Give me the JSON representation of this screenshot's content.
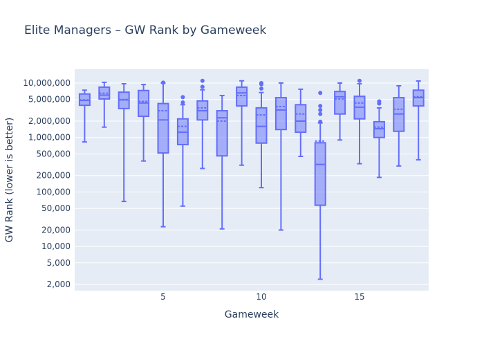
{
  "chart_data": {
    "type": "box",
    "title": "Elite Managers – GW Rank by Gameweek",
    "xlabel": "Gameweek",
    "ylabel": "GW Rank (lower is better)",
    "yscale": "log",
    "ylim": [
      1600,
      14000
    ],
    "x_ticks": [
      5,
      10,
      15
    ],
    "y_ticks": [
      {
        "value": 10000000,
        "label": "10,000,000"
      },
      {
        "value": 5000000,
        "label": "5,000,000"
      },
      {
        "value": 2000000,
        "label": "2,000,000"
      },
      {
        "value": 1000000,
        "label": "1,000,000"
      },
      {
        "value": 500000,
        "label": "500,000"
      },
      {
        "value": 200000,
        "label": "200,000"
      },
      {
        "value": 100000,
        "label": "100,000"
      },
      {
        "value": 50000,
        "label": "50,000"
      },
      {
        "value": 20000,
        "label": "20,000"
      },
      {
        "value": 10000,
        "label": "10,000"
      },
      {
        "value": 5000,
        "label": "5,000"
      },
      {
        "value": 2000,
        "label": "2,000"
      }
    ],
    "grid": true,
    "legend": false,
    "box_color": "#636efa",
    "boxes": [
      {
        "gw": 1,
        "lower": 830000,
        "q1": 3900000,
        "median": 4800000,
        "mean": 4900000,
        "q3": 6300000,
        "upper": 7400000,
        "outliers": []
      },
      {
        "gw": 2,
        "lower": 1550000,
        "q1": 5100000,
        "median": 6000000,
        "mean": 6500000,
        "q3": 8400000,
        "upper": 10300000,
        "outliers": []
      },
      {
        "gw": 3,
        "lower": 67000,
        "q1": 3400000,
        "median": 4900000,
        "mean": 5000000,
        "q3": 6800000,
        "upper": 9700000,
        "outliers": []
      },
      {
        "gw": 4,
        "lower": 370000,
        "q1": 2450000,
        "median": 4300000,
        "mean": 4600000,
        "q3": 7300000,
        "upper": 9400000,
        "outliers": []
      },
      {
        "gw": 5,
        "lower": 23000,
        "q1": 520000,
        "median": 2100000,
        "mean": 3100000,
        "q3": 4200000,
        "upper": 10000000,
        "outliers": [
          10200000
        ]
      },
      {
        "gw": 6,
        "lower": 55000,
        "q1": 740000,
        "median": 1250000,
        "mean": 1600000,
        "q3": 2200000,
        "upper": 4000000,
        "outliers": [
          4400000,
          5500000
        ]
      },
      {
        "gw": 7,
        "lower": 270000,
        "q1": 2100000,
        "median": 3100000,
        "mean": 3500000,
        "q3": 4700000,
        "upper": 7500000,
        "outliers": [
          8500000,
          11000000
        ]
      },
      {
        "gw": 8,
        "lower": 21000,
        "q1": 460000,
        "median": 2300000,
        "mean": 2000000,
        "q3": 3100000,
        "upper": 5900000,
        "outliers": []
      },
      {
        "gw": 9,
        "lower": 310000,
        "q1": 3800000,
        "median": 6600000,
        "mean": 5900000,
        "q3": 8400000,
        "upper": 11000000,
        "outliers": []
      },
      {
        "gw": 10,
        "lower": 120000,
        "q1": 790000,
        "median": 1600000,
        "mean": 2600000,
        "q3": 3500000,
        "upper": 6700000,
        "outliers": [
          7900000,
          9500000,
          10000000
        ]
      },
      {
        "gw": 11,
        "lower": 20000,
        "q1": 1400000,
        "median": 3200000,
        "mean": 3700000,
        "q3": 5400000,
        "upper": 10000000,
        "outliers": []
      },
      {
        "gw": 12,
        "lower": 450000,
        "q1": 1250000,
        "median": 2000000,
        "mean": 2700000,
        "q3": 4000000,
        "upper": 7700000,
        "outliers": []
      },
      {
        "gw": 13,
        "lower": 2500,
        "q1": 57000,
        "median": 320000,
        "mean": 860000,
        "q3": 800000,
        "upper": 1850000,
        "outliers": [
          1950000,
          2700000,
          3200000,
          3800000,
          6600000
        ]
      },
      {
        "gw": 14,
        "lower": 900000,
        "q1": 2700000,
        "median": 5600000,
        "mean": 5100000,
        "q3": 7000000,
        "upper": 10000000,
        "outliers": []
      },
      {
        "gw": 15,
        "lower": 330000,
        "q1": 2200000,
        "median": 3600000,
        "mean": 4300000,
        "q3": 5700000,
        "upper": 9700000,
        "outliers": [
          11000000
        ]
      },
      {
        "gw": 16,
        "lower": 185000,
        "q1": 1000000,
        "median": 1450000,
        "mean": 1550000,
        "q3": 1950000,
        "upper": 3500000,
        "outliers": [
          4200000,
          4600000
        ]
      },
      {
        "gw": 17,
        "lower": 300000,
        "q1": 1300000,
        "median": 2700000,
        "mean": 3300000,
        "q3": 5400000,
        "upper": 8900000,
        "outliers": []
      },
      {
        "gw": 18,
        "lower": 390000,
        "q1": 3800000,
        "median": 5400000,
        "mean": 5600000,
        "q3": 7400000,
        "upper": 10900000,
        "outliers": []
      }
    ]
  }
}
